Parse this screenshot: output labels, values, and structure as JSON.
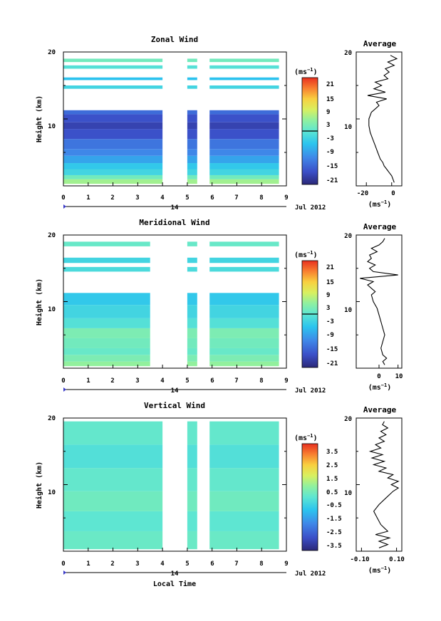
{
  "figure": {
    "x_axis_title": "Local Time",
    "day_label": "14",
    "month_label": "Jul 2012",
    "height_label": "Height (km)",
    "average_title": "Average",
    "unit_label": "(ms",
    "unit_exp": "−1",
    "unit_close": ")"
  },
  "chart_data": [
    {
      "type": "heatmap",
      "title": "Zonal Wind",
      "xlabel": "",
      "ylabel": "Height (km)",
      "xlim": [
        0,
        9
      ],
      "ylim": [
        0,
        20
      ],
      "x_ticks": [
        "0",
        "1",
        "2",
        "3",
        "4",
        "5",
        "6",
        "7",
        "8",
        "9"
      ],
      "y_ticks": [
        "10",
        "20"
      ],
      "colorbar": {
        "ticks": [
          "21",
          "15",
          "9",
          "3",
          "-3",
          "-9",
          "-15",
          "-21"
        ],
        "range": [
          -24,
          24
        ]
      },
      "data_gaps": [
        [
          4.0,
          5.0
        ],
        [
          5.4,
          5.9
        ]
      ],
      "layers": [
        {
          "y0": 0.3,
          "y1": 1.0,
          "v": 6
        },
        {
          "y0": 1.0,
          "y1": 1.6,
          "v": 2
        },
        {
          "y0": 1.6,
          "y1": 2.5,
          "v": -3
        },
        {
          "y0": 2.5,
          "y1": 3.4,
          "v": -5
        },
        {
          "y0": 3.4,
          "y1": 4.5,
          "v": -9
        },
        {
          "y0": 4.5,
          "y1": 5.5,
          "v": -12
        },
        {
          "y0": 5.5,
          "y1": 7.0,
          "v": -14
        },
        {
          "y0": 7.0,
          "y1": 8.5,
          "v": -18
        },
        {
          "y0": 8.5,
          "y1": 9.5,
          "v": -20
        },
        {
          "y0": 9.5,
          "y1": 10.7,
          "v": -18
        },
        {
          "y0": 10.7,
          "y1": 11.3,
          "v": -15
        },
        {
          "y0": 14.5,
          "y1": 15.0,
          "v": -3
        },
        {
          "y0": 15.8,
          "y1": 16.2,
          "v": -6
        },
        {
          "y0": 17.5,
          "y1": 18.0,
          "v": -1
        },
        {
          "y0": 18.5,
          "y1": 19.0,
          "v": 2
        }
      ],
      "avg_profile": {
        "xlabel": "",
        "unit": "(ms",
        "unit_exp": "−1",
        "unit_close": ")",
        "xlim": [
          -28,
          8
        ],
        "x_ticks": [
          "-20",
          "0"
        ],
        "x_tick_values": [
          -20,
          0
        ],
        "heights": [
          0.5,
          1,
          1.5,
          2,
          2.5,
          3,
          3.5,
          4,
          5,
          6,
          7,
          8,
          9,
          10,
          11,
          11.5,
          12,
          12.5,
          13,
          13.5,
          14,
          14.5,
          15,
          15.5,
          16,
          16.5,
          17,
          17.5,
          18,
          18.5,
          19,
          19.5
        ],
        "values": [
          2,
          1,
          0,
          -2,
          -4,
          -6,
          -7,
          -9,
          -11,
          -13,
          -15,
          -17,
          -18,
          -18,
          -16,
          -13,
          -10,
          -12,
          -4,
          -19,
          -5,
          -14,
          -8,
          -13,
          -3,
          -6,
          -2,
          -5,
          2,
          -3,
          4,
          -1
        ]
      }
    },
    {
      "type": "heatmap",
      "title": "Meridional Wind",
      "xlabel": "",
      "ylabel": "Height (km)",
      "xlim": [
        0,
        9
      ],
      "ylim": [
        0,
        20
      ],
      "x_ticks": [
        "0",
        "1",
        "2",
        "3",
        "4",
        "5",
        "6",
        "7",
        "8",
        "9"
      ],
      "y_ticks": [
        "10",
        "20"
      ],
      "colorbar": {
        "ticks": [
          "21",
          "15",
          "9",
          "3",
          "-3",
          "-9",
          "-15",
          "-21"
        ],
        "range": [
          -24,
          24
        ]
      },
      "data_gaps": [
        [
          3.5,
          5.0
        ],
        [
          5.4,
          5.9
        ]
      ],
      "layers": [
        {
          "y0": 0.3,
          "y1": 1.0,
          "v": 5
        },
        {
          "y0": 1.0,
          "y1": 2.0,
          "v": 3
        },
        {
          "y0": 2.0,
          "y1": 3.0,
          "v": 1
        },
        {
          "y0": 3.0,
          "y1": 4.5,
          "v": 2
        },
        {
          "y0": 4.5,
          "y1": 6.0,
          "v": 3
        },
        {
          "y0": 6.0,
          "y1": 7.5,
          "v": -1
        },
        {
          "y0": 7.5,
          "y1": 9.5,
          "v": -3
        },
        {
          "y0": 9.5,
          "y1": 11.3,
          "v": -5
        },
        {
          "y0": 14.5,
          "y1": 15.2,
          "v": -2
        },
        {
          "y0": 15.8,
          "y1": 16.6,
          "v": -3
        },
        {
          "y0": 18.3,
          "y1": 19.0,
          "v": 1
        }
      ],
      "avg_profile": {
        "xlabel": "",
        "unit": "(ms",
        "unit_exp": "−1",
        "unit_close": ")",
        "xlim": [
          -12,
          12
        ],
        "x_ticks": [
          "0",
          "10"
        ],
        "x_tick_values": [
          0,
          10
        ],
        "heights": [
          0.5,
          1,
          1.5,
          2,
          3,
          4,
          5,
          6,
          7,
          8,
          9,
          10,
          11,
          11.5,
          12,
          12.5,
          13,
          13.5,
          14,
          14.5,
          15,
          15.5,
          16,
          16.5,
          17,
          17.5,
          18,
          18.5,
          19,
          19.5
        ],
        "values": [
          3,
          2,
          4,
          2,
          1,
          2,
          3,
          2,
          1,
          0,
          -1,
          -3,
          -4,
          -2,
          -4,
          -6,
          -3,
          -10,
          10,
          -3,
          -5,
          -2,
          -6,
          -4,
          -5,
          -1,
          -4,
          0,
          2,
          3
        ]
      }
    },
    {
      "type": "heatmap",
      "title": "Vertical Wind",
      "xlabel": "Local Time",
      "ylabel": "Height (km)",
      "xlim": [
        0,
        9
      ],
      "ylim": [
        0,
        20
      ],
      "x_ticks": [
        "0",
        "1",
        "2",
        "3",
        "4",
        "5",
        "6",
        "7",
        "8",
        "9"
      ],
      "y_ticks": [
        "10",
        "20"
      ],
      "colorbar": {
        "ticks": [
          "3.5",
          "2.5",
          "1.5",
          "0.5",
          "-0.5",
          "-1.5",
          "-2.5",
          "-3.5"
        ],
        "range": [
          -4,
          4
        ]
      },
      "data_gaps": [
        [
          4.0,
          5.0
        ],
        [
          5.4,
          5.9
        ]
      ],
      "layers": [
        {
          "y0": 0.3,
          "y1": 3.0,
          "v": 0.2
        },
        {
          "y0": 3.0,
          "y1": 6.0,
          "v": 0.0
        },
        {
          "y0": 6.0,
          "y1": 9.0,
          "v": 0.3
        },
        {
          "y0": 9.0,
          "y1": 12.5,
          "v": 0.1
        },
        {
          "y0": 12.5,
          "y1": 16.0,
          "v": -0.2
        },
        {
          "y0": 16.0,
          "y1": 19.5,
          "v": 0.1
        }
      ],
      "avg_profile": {
        "xlabel": "",
        "unit": "(ms",
        "unit_exp": "−1",
        "unit_close": ")",
        "xlim": [
          -0.13,
          0.13
        ],
        "x_ticks": [
          "-0.10",
          "0.10"
        ],
        "x_tick_values": [
          -0.1,
          0.1
        ],
        "heights": [
          0.5,
          1,
          1.5,
          2,
          2.5,
          3,
          3.5,
          4,
          5,
          6,
          7,
          8,
          9,
          9.5,
          10,
          10.5,
          11,
          11.5,
          12,
          12.5,
          13,
          13.5,
          14,
          14.5,
          15,
          15.5,
          16,
          16.5,
          17,
          17.5,
          18,
          18.5,
          19,
          19.5
        ],
        "values": [
          0.0,
          0.05,
          0.0,
          0.06,
          -0.02,
          0.05,
          0.03,
          0.01,
          -0.01,
          -0.03,
          0.0,
          0.04,
          0.08,
          0.11,
          0.07,
          0.11,
          0.05,
          0.08,
          0.0,
          0.04,
          -0.03,
          0.03,
          -0.04,
          0.02,
          -0.05,
          0.01,
          -0.02,
          0.03,
          0.0,
          0.04,
          0.01,
          0.05,
          0.02,
          0.03
        ]
      }
    }
  ]
}
